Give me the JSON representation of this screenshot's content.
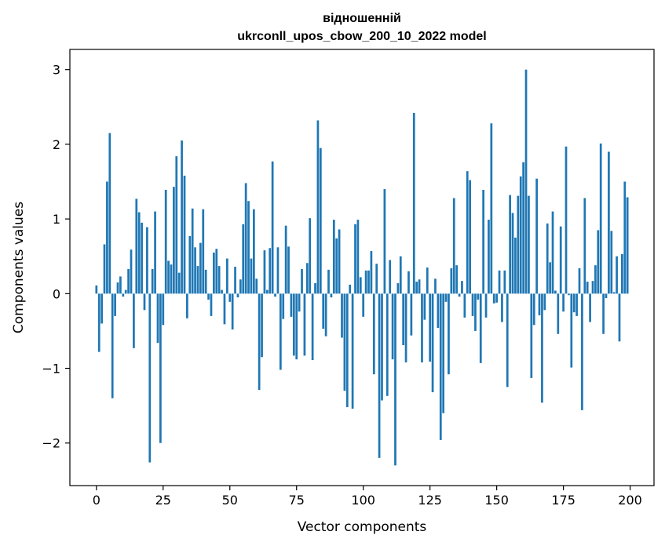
{
  "chart_data": {
    "type": "bar",
    "title_line1": "відношенній",
    "title_line2": "ukrconll_upos_cbow_200_10_2022 model",
    "xlabel": "Vector components",
    "ylabel": "Components values",
    "xlim": [
      -9.95,
      208.95
    ],
    "ylim": [
      -2.57,
      3.27
    ],
    "x_ticks": [
      0,
      25,
      50,
      75,
      100,
      125,
      150,
      175,
      200
    ],
    "y_ticks": [
      -2,
      -1,
      0,
      1,
      2,
      3
    ],
    "y_tick_labels": [
      "−2",
      "−1",
      "0",
      "1",
      "2",
      "3"
    ],
    "bar_color": "#1f77b4",
    "grid": false,
    "values": [
      0.11,
      -0.78,
      -0.4,
      0.66,
      1.5,
      2.15,
      -1.4,
      -0.3,
      0.15,
      0.23,
      -0.04,
      0.05,
      0.33,
      0.59,
      -0.73,
      1.27,
      1.09,
      0.95,
      -0.22,
      0.89,
      -2.26,
      0.33,
      1.1,
      -0.66,
      -2.0,
      -0.42,
      1.39,
      0.44,
      0.39,
      1.43,
      1.84,
      0.28,
      2.05,
      1.58,
      -0.33,
      0.77,
      1.14,
      0.62,
      0.37,
      0.68,
      1.13,
      0.32,
      -0.08,
      -0.3,
      0.55,
      0.6,
      0.37,
      0.05,
      -0.41,
      0.47,
      -0.11,
      -0.48,
      0.36,
      -0.05,
      0.19,
      0.93,
      1.48,
      1.24,
      0.47,
      1.13,
      0.2,
      -1.29,
      -0.85,
      0.58,
      0.05,
      0.61,
      1.77,
      -0.04,
      0.62,
      -1.02,
      -0.34,
      0.91,
      0.63,
      -0.31,
      -0.83,
      -0.88,
      -0.24,
      0.33,
      -0.83,
      0.41,
      1.01,
      -0.89,
      0.14,
      2.32,
      1.95,
      -0.47,
      -0.57,
      0.32,
      -0.05,
      0.99,
      0.74,
      0.86,
      -0.59,
      -1.3,
      -1.52,
      0.12,
      -1.54,
      0.93,
      0.99,
      0.22,
      -0.31,
      0.31,
      0.31,
      0.57,
      -1.08,
      0.4,
      -2.2,
      -1.43,
      1.4,
      -1.37,
      0.45,
      -0.88,
      -2.3,
      0.14,
      0.5,
      -0.69,
      -0.92,
      0.3,
      -0.56,
      2.42,
      0.16,
      0.19,
      -0.92,
      -0.35,
      0.35,
      -0.91,
      -1.32,
      0.2,
      -0.46,
      -1.96,
      -1.6,
      -0.11,
      -1.08,
      0.34,
      1.28,
      0.38,
      -0.04,
      0.17,
      -0.32,
      1.64,
      1.52,
      -0.3,
      -0.5,
      -0.08,
      -0.93,
      1.39,
      -0.32,
      0.99,
      2.28,
      -0.13,
      -0.12,
      0.31,
      -0.38,
      0.31,
      -1.25,
      1.32,
      1.08,
      0.75,
      1.31,
      1.57,
      1.76,
      3.0,
      1.31,
      -1.13,
      -0.42,
      1.54,
      -0.29,
      -1.46,
      -0.22,
      0.94,
      0.42,
      1.1,
      0.04,
      -0.54,
      0.9,
      -0.24,
      1.97,
      -0.02,
      -0.99,
      -0.25,
      -0.3,
      0.34,
      -1.56,
      1.28,
      0.16,
      -0.38,
      0.17,
      0.38,
      0.85,
      2.01,
      -0.54,
      -0.06,
      1.9,
      0.84,
      0.02,
      0.5,
      -0.64,
      0.53,
      1.5,
      1.29
    ]
  }
}
